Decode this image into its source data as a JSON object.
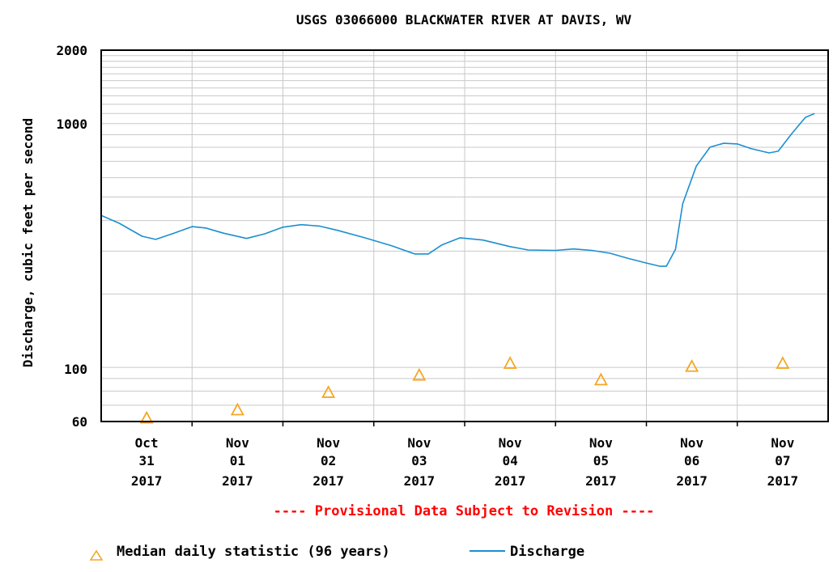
{
  "chart_data": {
    "type": "line",
    "title": "USGS 03066000 BLACKWATER RIVER AT DAVIS, WV",
    "ylabel": "Discharge, cubic feet per second",
    "xlabel": "",
    "yscale": "log",
    "ylim": [
      60,
      2000
    ],
    "y_ticks": [
      "2000",
      "1000",
      "100",
      "60"
    ],
    "x_range_days": [
      0,
      8
    ],
    "x_ticks": [
      {
        "day": 0.5,
        "month": "Oct",
        "date": "31",
        "year": "2017"
      },
      {
        "day": 1.5,
        "month": "Nov",
        "date": "01",
        "year": "2017"
      },
      {
        "day": 2.5,
        "month": "Nov",
        "date": "02",
        "year": "2017"
      },
      {
        "day": 3.5,
        "month": "Nov",
        "date": "03",
        "year": "2017"
      },
      {
        "day": 4.5,
        "month": "Nov",
        "date": "04",
        "year": "2017"
      },
      {
        "day": 5.5,
        "month": "Nov",
        "date": "05",
        "year": "2017"
      },
      {
        "day": 6.5,
        "month": "Nov",
        "date": "06",
        "year": "2017"
      },
      {
        "day": 7.5,
        "month": "Nov",
        "date": "07",
        "year": "2017"
      }
    ],
    "series": [
      {
        "name": "Discharge",
        "kind": "line",
        "color": "#1b8fd0",
        "points": [
          [
            0.0,
            420
          ],
          [
            0.2,
            390
          ],
          [
            0.45,
            345
          ],
          [
            0.6,
            335
          ],
          [
            0.8,
            355
          ],
          [
            1.0,
            378
          ],
          [
            1.15,
            373
          ],
          [
            1.35,
            355
          ],
          [
            1.6,
            338
          ],
          [
            1.8,
            353
          ],
          [
            2.0,
            376
          ],
          [
            2.2,
            385
          ],
          [
            2.4,
            380
          ],
          [
            2.6,
            365
          ],
          [
            2.9,
            340
          ],
          [
            3.2,
            315
          ],
          [
            3.45,
            292
          ],
          [
            3.6,
            292
          ],
          [
            3.75,
            318
          ],
          [
            3.95,
            340
          ],
          [
            4.2,
            333
          ],
          [
            4.5,
            313
          ],
          [
            4.7,
            303
          ],
          [
            5.0,
            302
          ],
          [
            5.2,
            306
          ],
          [
            5.4,
            302
          ],
          [
            5.6,
            294
          ],
          [
            5.8,
            280
          ],
          [
            6.0,
            268
          ],
          [
            6.15,
            260
          ],
          [
            6.22,
            260
          ],
          [
            6.32,
            305
          ],
          [
            6.4,
            470
          ],
          [
            6.55,
            670
          ],
          [
            6.7,
            800
          ],
          [
            6.85,
            830
          ],
          [
            7.0,
            825
          ],
          [
            7.15,
            790
          ],
          [
            7.35,
            758
          ],
          [
            7.45,
            770
          ],
          [
            7.6,
            910
          ],
          [
            7.75,
            1060
          ],
          [
            7.85,
            1100
          ]
        ]
      },
      {
        "name": "Median daily statistic (96 years)",
        "kind": "marker",
        "marker": "triangle",
        "color": "#f5a623",
        "points": [
          [
            0.5,
            62
          ],
          [
            1.5,
            67
          ],
          [
            2.5,
            79
          ],
          [
            3.5,
            93
          ],
          [
            4.5,
            104
          ],
          [
            5.5,
            89
          ],
          [
            6.5,
            101
          ],
          [
            7.5,
            104
          ]
        ]
      }
    ],
    "annotation": "---- Provisional Data Subject to Revision ----",
    "annotation_color": "#ff0000",
    "legend": {
      "placement": "bottom",
      "items": [
        {
          "label": "Median daily statistic (96 years)",
          "symbol": "triangle",
          "color": "#f5a623"
        },
        {
          "label": "Discharge",
          "symbol": "line",
          "color": "#1b8fd0"
        }
      ]
    },
    "grid": true,
    "grid_color": "#c8c8c8"
  }
}
